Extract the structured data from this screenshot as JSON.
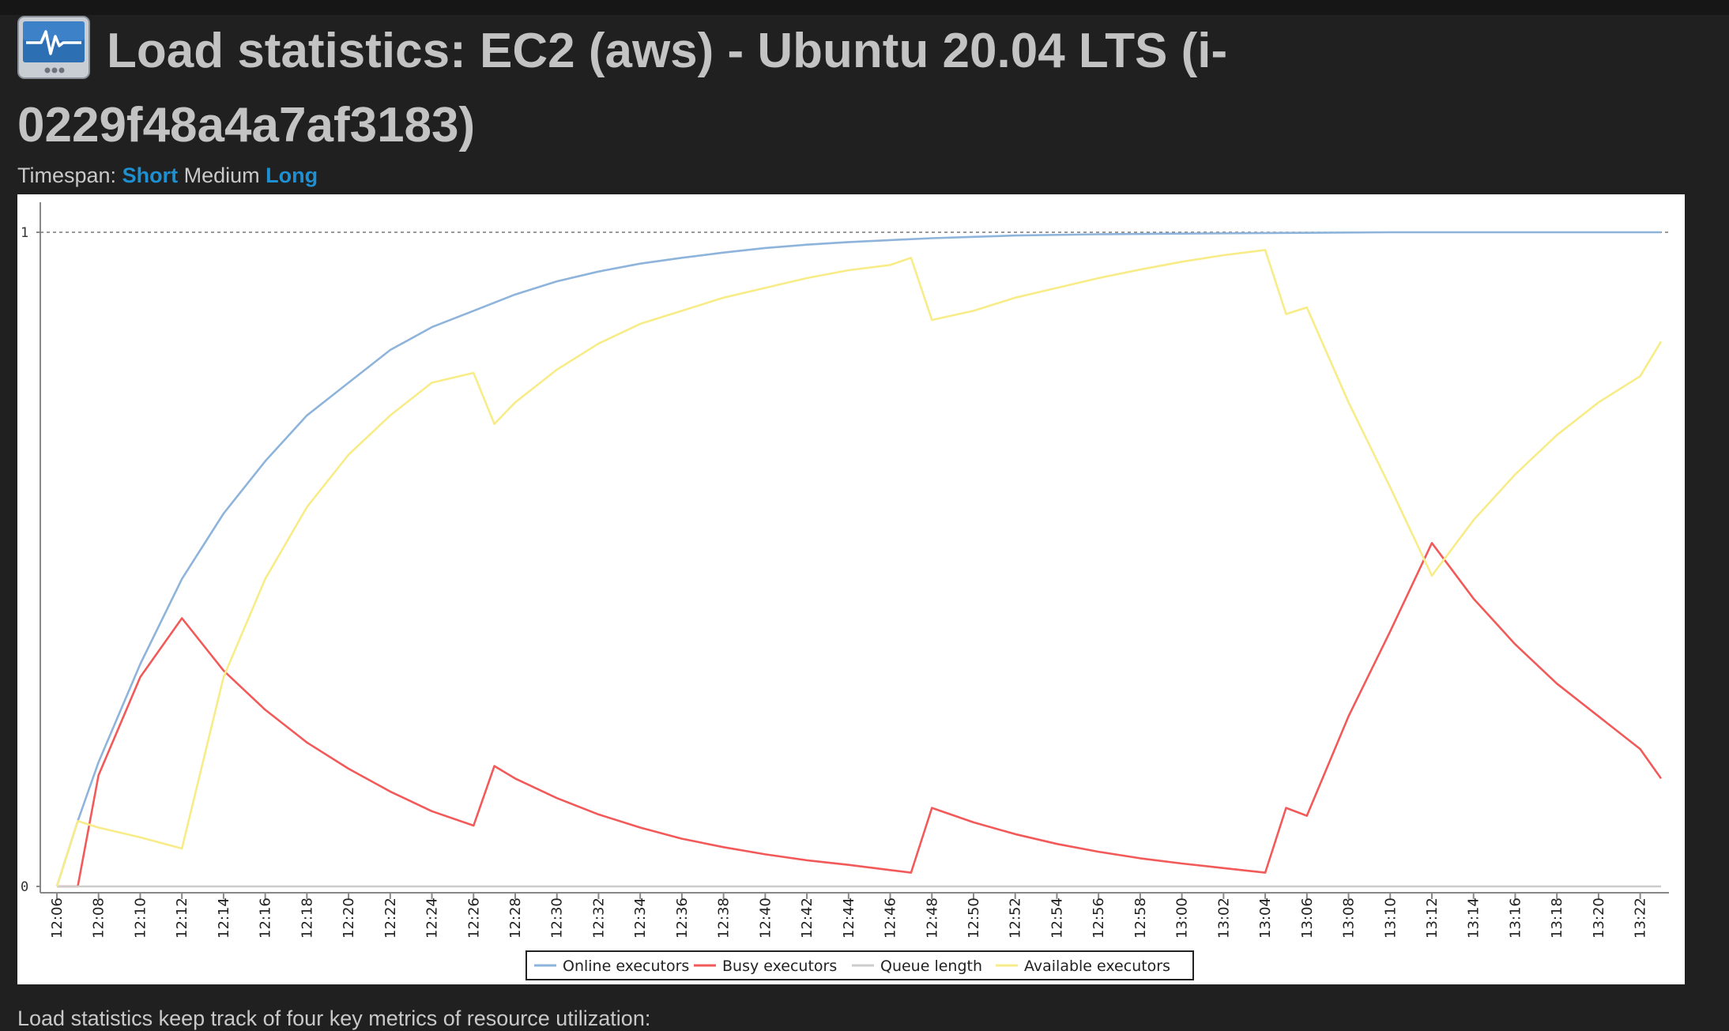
{
  "header": {
    "title_line1": "Load statistics: EC2 (aws) - Ubuntu 20.04 LTS (i-",
    "title_line2": "0229f48a4a7af3183)",
    "icon": "monitor-pulse-icon"
  },
  "timespan": {
    "label": "Timespan:",
    "options": [
      {
        "label": "Short",
        "link": true
      },
      {
        "label": "Medium",
        "link": false
      },
      {
        "label": "Long",
        "link": true
      }
    ]
  },
  "colors": {
    "online": "#8eb4dc",
    "busy": "#f25a5a",
    "queue": "#cccccc",
    "available": "#f8ec88",
    "link": "#1e8fd0"
  },
  "chart_data": {
    "type": "line",
    "ylim": [
      0,
      1
    ],
    "y_ticks": [
      "0",
      "1"
    ],
    "x_ticks": [
      "12:06",
      "12:08",
      "12:10",
      "12:12",
      "12:14",
      "12:16",
      "12:18",
      "12:20",
      "12:22",
      "12:24",
      "12:26",
      "12:28",
      "12:30",
      "12:32",
      "12:34",
      "12:36",
      "12:38",
      "12:40",
      "12:42",
      "12:44",
      "12:46",
      "12:48",
      "12:50",
      "12:52",
      "12:54",
      "12:56",
      "12:58",
      "13:00",
      "13:02",
      "13:04",
      "13:06",
      "13:08",
      "13:10",
      "13:12",
      "13:14",
      "13:16",
      "13:18",
      "13:20",
      "13:22"
    ],
    "x_range": [
      "12:06",
      "13:23"
    ],
    "legend_position": "bottom-center",
    "series": [
      {
        "name": "Online executors",
        "color": "#8eb4dc",
        "points": [
          [
            "12:06",
            0
          ],
          [
            "12:07",
            0.1
          ],
          [
            "12:08",
            0.19
          ],
          [
            "12:10",
            0.34
          ],
          [
            "12:12",
            0.47
          ],
          [
            "12:14",
            0.57
          ],
          [
            "12:16",
            0.65
          ],
          [
            "12:18",
            0.72
          ],
          [
            "12:20",
            0.77
          ],
          [
            "12:22",
            0.82
          ],
          [
            "12:24",
            0.855
          ],
          [
            "12:26",
            0.88
          ],
          [
            "12:28",
            0.905
          ],
          [
            "12:30",
            0.925
          ],
          [
            "12:32",
            0.94
          ],
          [
            "12:34",
            0.952
          ],
          [
            "12:36",
            0.961
          ],
          [
            "12:38",
            0.969
          ],
          [
            "12:40",
            0.976
          ],
          [
            "12:42",
            0.981
          ],
          [
            "12:44",
            0.985
          ],
          [
            "12:46",
            0.988
          ],
          [
            "12:48",
            0.991
          ],
          [
            "12:50",
            0.993
          ],
          [
            "12:52",
            0.995
          ],
          [
            "12:56",
            0.997
          ],
          [
            "13:00",
            0.998
          ],
          [
            "13:05",
            0.999
          ],
          [
            "13:10",
            1.0
          ],
          [
            "13:23",
            1.0
          ]
        ]
      },
      {
        "name": "Busy executors",
        "color": "#f25a5a",
        "points": [
          [
            "12:06",
            0
          ],
          [
            "12:07",
            0
          ],
          [
            "12:08",
            0.17
          ],
          [
            "12:10",
            0.32
          ],
          [
            "12:12",
            0.41
          ],
          [
            "12:14",
            0.33
          ],
          [
            "12:16",
            0.27
          ],
          [
            "12:18",
            0.22
          ],
          [
            "12:20",
            0.18
          ],
          [
            "12:22",
            0.145
          ],
          [
            "12:24",
            0.115
          ],
          [
            "12:26",
            0.093
          ],
          [
            "12:27",
            0.184
          ],
          [
            "12:28",
            0.165
          ],
          [
            "12:30",
            0.135
          ],
          [
            "12:32",
            0.11
          ],
          [
            "12:34",
            0.09
          ],
          [
            "12:36",
            0.073
          ],
          [
            "12:38",
            0.06
          ],
          [
            "12:40",
            0.049
          ],
          [
            "12:42",
            0.04
          ],
          [
            "12:44",
            0.033
          ],
          [
            "12:46",
            0.025
          ],
          [
            "12:47",
            0.021
          ],
          [
            "12:48",
            0.12
          ],
          [
            "12:50",
            0.098
          ],
          [
            "12:52",
            0.08
          ],
          [
            "12:54",
            0.065
          ],
          [
            "12:56",
            0.053
          ],
          [
            "12:58",
            0.043
          ],
          [
            "13:00",
            0.035
          ],
          [
            "13:02",
            0.028
          ],
          [
            "13:04",
            0.021
          ],
          [
            "13:05",
            0.12
          ],
          [
            "13:06",
            0.108
          ],
          [
            "13:08",
            0.26
          ],
          [
            "13:10",
            0.39
          ],
          [
            "13:12",
            0.525
          ],
          [
            "13:14",
            0.44
          ],
          [
            "13:16",
            0.37
          ],
          [
            "13:18",
            0.31
          ],
          [
            "13:20",
            0.26
          ],
          [
            "13:22",
            0.21
          ],
          [
            "13:23",
            0.165
          ]
        ]
      },
      {
        "name": "Queue length",
        "color": "#cccccc",
        "points": [
          [
            "12:06",
            0
          ],
          [
            "13:23",
            0
          ]
        ]
      },
      {
        "name": "Available executors",
        "color": "#f8ec88",
        "points": [
          [
            "12:06",
            0
          ],
          [
            "12:07",
            0.1
          ],
          [
            "12:08",
            0.09
          ],
          [
            "12:10",
            0.075
          ],
          [
            "12:12",
            0.058
          ],
          [
            "12:14",
            0.32
          ],
          [
            "12:16",
            0.47
          ],
          [
            "12:18",
            0.58
          ],
          [
            "12:20",
            0.66
          ],
          [
            "12:22",
            0.72
          ],
          [
            "12:24",
            0.77
          ],
          [
            "12:26",
            0.785
          ],
          [
            "12:27",
            0.707
          ],
          [
            "12:28",
            0.74
          ],
          [
            "12:30",
            0.79
          ],
          [
            "12:32",
            0.83
          ],
          [
            "12:34",
            0.86
          ],
          [
            "12:36",
            0.88
          ],
          [
            "12:38",
            0.9
          ],
          [
            "12:40",
            0.915
          ],
          [
            "12:42",
            0.93
          ],
          [
            "12:44",
            0.942
          ],
          [
            "12:46",
            0.95
          ],
          [
            "12:47",
            0.961
          ],
          [
            "12:48",
            0.866
          ],
          [
            "12:50",
            0.88
          ],
          [
            "12:52",
            0.9
          ],
          [
            "12:54",
            0.915
          ],
          [
            "12:56",
            0.93
          ],
          [
            "12:58",
            0.943
          ],
          [
            "13:00",
            0.955
          ],
          [
            "13:02",
            0.965
          ],
          [
            "13:04",
            0.973
          ],
          [
            "13:05",
            0.875
          ],
          [
            "13:06",
            0.885
          ],
          [
            "13:08",
            0.74
          ],
          [
            "13:10",
            0.61
          ],
          [
            "13:12",
            0.475
          ],
          [
            "13:14",
            0.56
          ],
          [
            "13:16",
            0.63
          ],
          [
            "13:18",
            0.69
          ],
          [
            "13:20",
            0.74
          ],
          [
            "13:22",
            0.78
          ],
          [
            "13:23",
            0.833
          ]
        ]
      }
    ]
  },
  "footer": {
    "text": "Load statistics keep track of four key metrics of resource utilization:"
  }
}
